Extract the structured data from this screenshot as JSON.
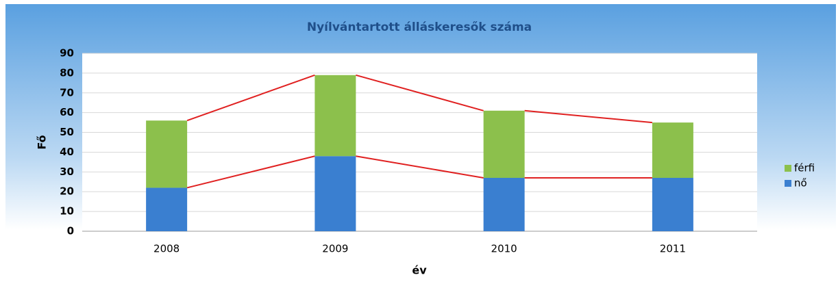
{
  "chart_data": {
    "type": "stacked_bar",
    "title": "Nyílvántartott álláskeresők száma",
    "x_label": "év",
    "y_label": "Fő",
    "categories": [
      "2008",
      "2009",
      "2010",
      "2011"
    ],
    "series": [
      {
        "name": "nő",
        "color": "#3a7fd0",
        "values": [
          22,
          38,
          27,
          27
        ]
      },
      {
        "name": "férfi",
        "color": "#8cc04c",
        "values": [
          34,
          41,
          34,
          28
        ]
      }
    ],
    "ylim": [
      0,
      90
    ],
    "yticks": [
      0,
      10,
      20,
      30,
      40,
      50,
      60,
      70,
      80,
      90
    ],
    "grid": true,
    "legend": "right",
    "series_lines": true,
    "series_line_color": "#e02020"
  }
}
